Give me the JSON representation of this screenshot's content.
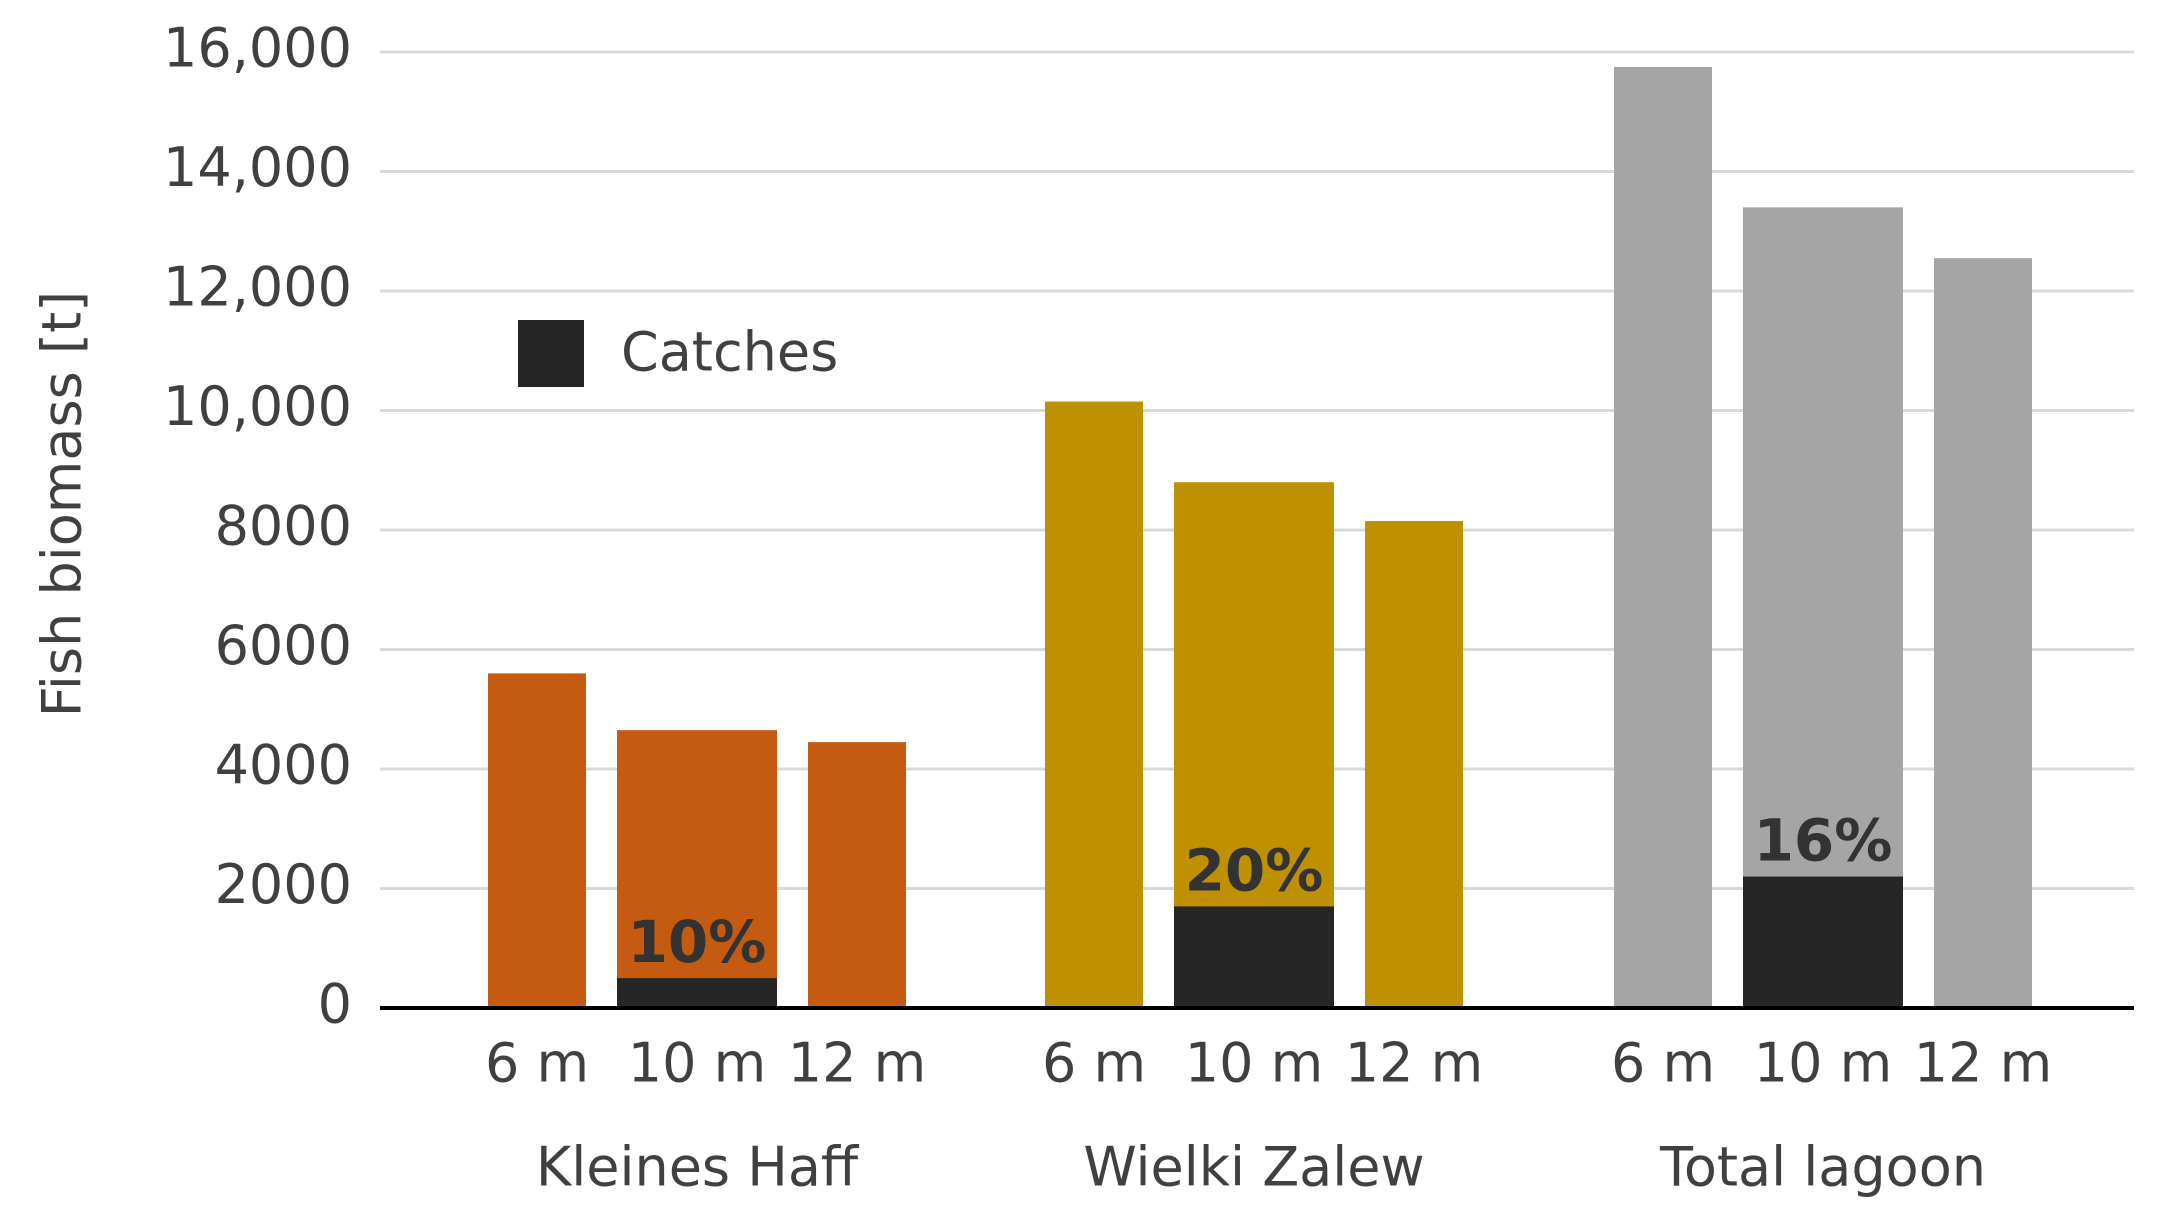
{
  "chart_data": {
    "type": "bar",
    "y_label": "Fish biomass [t]",
    "categories": [
      "6 m",
      "10 m",
      "12 m"
    ],
    "groups": [
      {
        "label": "Kleines Haff",
        "color": "#c55a11",
        "values": [
          5600,
          4650,
          4450
        ],
        "catches": [
          null,
          500,
          null
        ],
        "catch_labels": [
          null,
          "10%",
          null
        ]
      },
      {
        "label": "Wielki Zalew",
        "color": "#bf9000",
        "values": [
          10150,
          8800,
          8150
        ],
        "catches": [
          null,
          1700,
          null
        ],
        "catch_labels": [
          null,
          "20%",
          null
        ]
      },
      {
        "label": "Total lagoon",
        "color": "#a5a5a5",
        "values": [
          15750,
          13400,
          12550
        ],
        "catches": [
          null,
          2200,
          null
        ],
        "catch_labels": [
          null,
          "16%",
          null
        ]
      }
    ],
    "catch_series": {
      "name": "Catches",
      "color": "#262626"
    },
    "ylim": [
      0,
      16000
    ],
    "yticks": [
      0,
      2000,
      4000,
      6000,
      8000,
      {
        "value": 10000,
        "label": "10,000"
      },
      {
        "value": 12000,
        "label": "12,000"
      },
      {
        "value": 14000,
        "label": "14,000"
      },
      {
        "value": 16000,
        "label": "16,000"
      }
    ],
    "grid": true
  }
}
